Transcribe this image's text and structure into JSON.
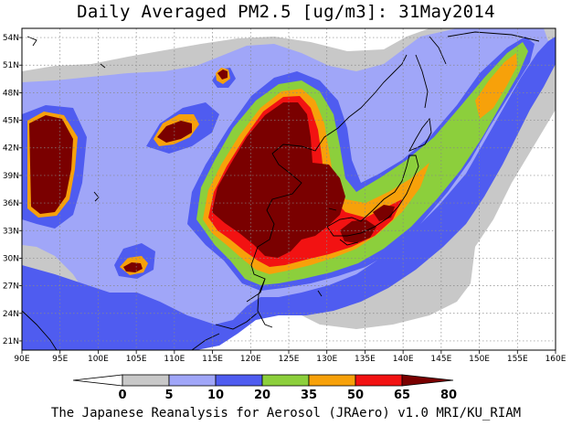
{
  "title": "Daily Averaged PM2.5 [ug/m3]: 31May2014",
  "footer": "The Japanese Reanalysis for Aerosol (JRAero) v1.0 MRI/KU_RIAM",
  "map": {
    "lon_range": [
      90,
      160
    ],
    "lat_range": [
      20,
      55
    ],
    "lon_ticks": [
      "90E",
      "95E",
      "100E",
      "105E",
      "110E",
      "115E",
      "120E",
      "125E",
      "130E",
      "135E",
      "140E",
      "145E",
      "150E",
      "155E",
      "160E"
    ],
    "lat_ticks": [
      "21N",
      "24N",
      "27N",
      "30N",
      "33N",
      "36N",
      "39N",
      "42N",
      "45N",
      "48N",
      "51N",
      "54N"
    ],
    "grid": "dotted"
  },
  "colorbar": {
    "labels": [
      "0",
      "5",
      "10",
      "20",
      "35",
      "50",
      "65",
      "80"
    ],
    "colors": [
      "#ffffff",
      "#c8c8c8",
      "#a0a6f8",
      "#4f5cf0",
      "#8ccf3c",
      "#f7a10a",
      "#f21212",
      "#7a0000"
    ]
  }
}
